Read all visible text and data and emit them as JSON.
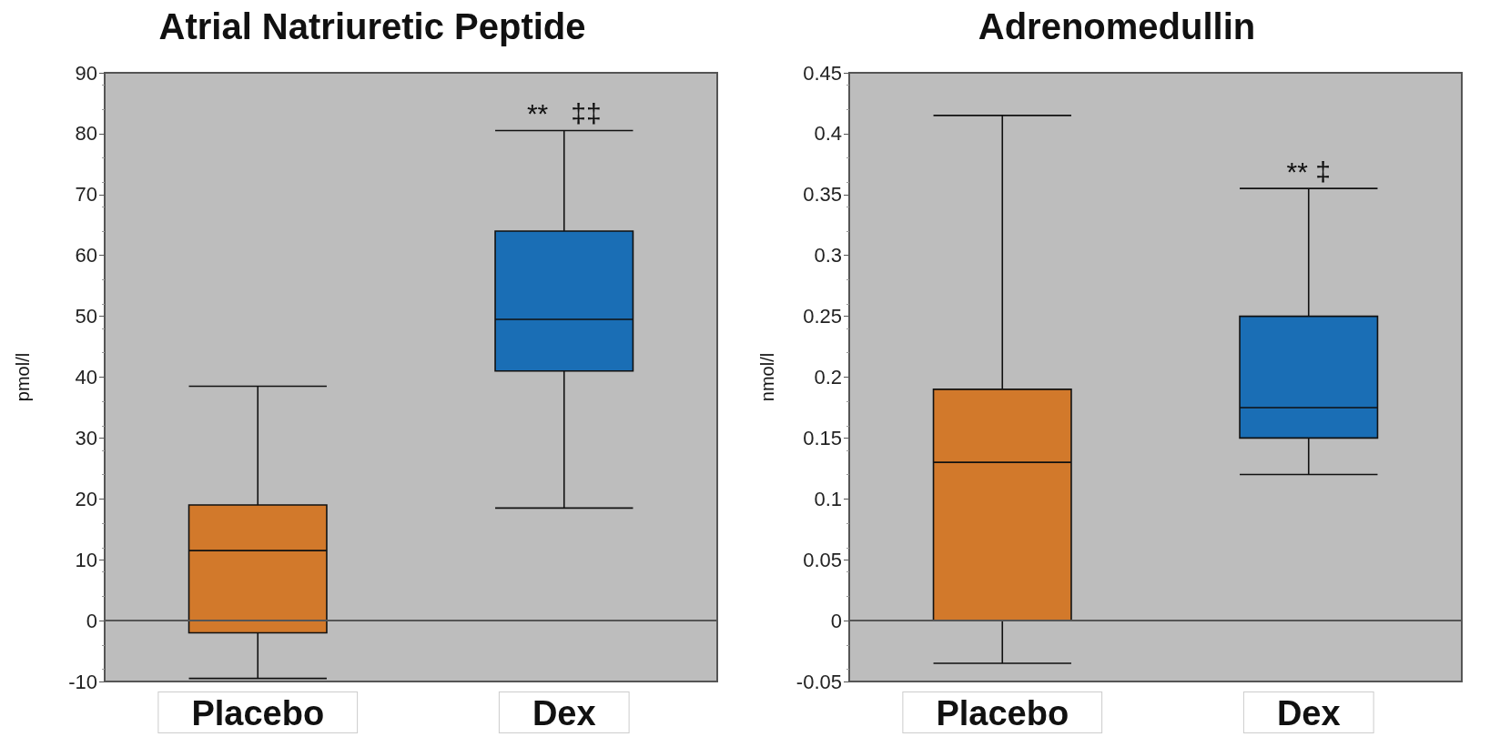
{
  "chart_data": [
    {
      "type": "box",
      "title": "Atrial Natriuretic Peptide",
      "ylabel": "pmol/l",
      "categories": [
        "Placebo",
        "Dex"
      ],
      "colors": [
        "#d2792b",
        "#1a6eb5"
      ],
      "boxes": [
        {
          "low": -9.5,
          "q1": -2,
          "median": 11.5,
          "q3": 19,
          "high": 38.5
        },
        {
          "low": 18.5,
          "q1": 41,
          "median": 49.5,
          "q3": 64,
          "high": 80.5
        }
      ],
      "ylim": [
        -10,
        90
      ],
      "yticks": [
        -10,
        0,
        10,
        20,
        30,
        40,
        50,
        60,
        70,
        80,
        90
      ],
      "ref_lines": [
        {
          "axis": "y",
          "value": 0,
          "color": "#555555"
        }
      ],
      "annotations": [
        {
          "text": "**   ‡‡",
          "x": "Dex",
          "y": 80.5
        }
      ],
      "grid": false
    },
    {
      "type": "box",
      "title": "Adrenomedullin",
      "ylabel": "nmol/l",
      "categories": [
        "Placebo",
        "Dex"
      ],
      "colors": [
        "#d2792b",
        "#1a6eb5"
      ],
      "boxes": [
        {
          "low": -0.035,
          "q1": 0,
          "median": 0.13,
          "q3": 0.19,
          "high": 0.415
        },
        {
          "low": 0.12,
          "q1": 0.15,
          "median": 0.175,
          "q3": 0.25,
          "high": 0.355
        }
      ],
      "ylim": [
        -0.05,
        0.45
      ],
      "yticks": [
        -0.05,
        0,
        0.05,
        0.1,
        0.15,
        0.2,
        0.25,
        0.3,
        0.35,
        0.4,
        0.45
      ],
      "ref_lines": [
        {
          "axis": "y",
          "value": 0,
          "color": "#555555"
        }
      ],
      "annotations": [
        {
          "text": "** ‡",
          "x": "Dex",
          "y": 0.355
        }
      ],
      "grid": false
    }
  ]
}
